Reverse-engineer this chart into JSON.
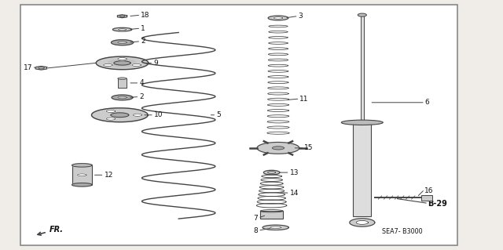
{
  "bg_color": "#f0ede8",
  "border_color": "#888888",
  "line_color": "#444444",
  "text_color": "#111111",
  "diagram_label": "SEA7- B3000",
  "b29_label": "B-29",
  "fr_label": "FR."
}
